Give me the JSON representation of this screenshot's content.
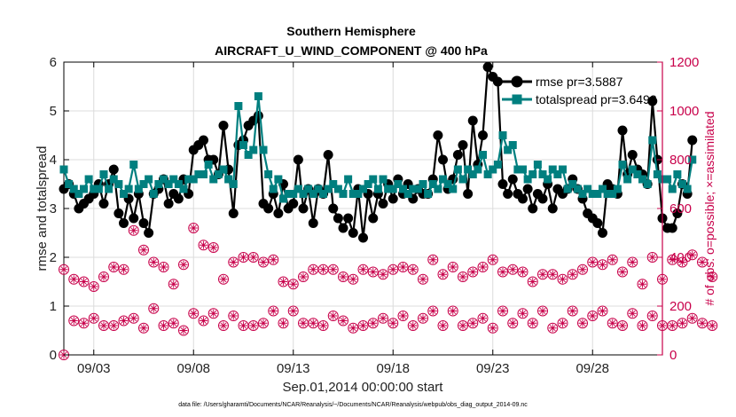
{
  "chart_data": {
    "type": "line",
    "title": "Southern Hemisphere",
    "subtitle": "AIRCRAFT_U_WIND_COMPONENT @ 400 hPa",
    "xlabel": "Sep.01,2014 00:00:00 start",
    "ylabel": "rmse and totalspread",
    "ylabel_right": "# of obs: o=possible; ×=assimilated",
    "footnote": "data file: /Users/gharamti/Documents/NCAR/Reanalysis/~/Documents/NCAR/Reanalysis/webpub/obs_diag_output_2014-09.nc",
    "x_tick_labels": [
      "09/03",
      "09/08",
      "09/13",
      "09/18",
      "09/23",
      "09/28"
    ],
    "x_tick_days": [
      3,
      8,
      13,
      18,
      23,
      28
    ],
    "x_range_days": [
      1.5,
      31.5
    ],
    "ylim": [
      0,
      6
    ],
    "yticks": [
      0,
      1,
      2,
      3,
      4,
      5,
      6
    ],
    "ylim_right": [
      0,
      1200
    ],
    "yticks_right": [
      0,
      200,
      400,
      600,
      800,
      1000,
      1200
    ],
    "grid": true,
    "legend_position": "top-right",
    "colors": {
      "rmse": "#000000",
      "totalspread": "#007f7f",
      "obs": "#c8004a"
    },
    "series": [
      {
        "name": "rmse pr=3.5887",
        "axis": "left",
        "x_start_day": 1.5,
        "x_step_day": 0.25,
        "values": [
          3.4,
          3.5,
          3.3,
          3.0,
          3.1,
          3.2,
          3.3,
          3.5,
          3.1,
          3.5,
          3.8,
          2.9,
          2.7,
          3.2,
          2.8,
          3.3,
          2.7,
          2.5,
          3.3,
          3.4,
          3.6,
          3.1,
          3.3,
          3.2,
          3.6,
          3.3,
          4.2,
          4.3,
          4.4,
          4.0,
          4.0,
          3.7,
          4.7,
          3.8,
          2.9,
          4.3,
          4.4,
          4.7,
          4.8,
          4.9,
          3.1,
          3.0,
          3.3,
          2.9,
          3.5,
          3.0,
          3.1,
          4.0,
          3.0,
          3.4,
          2.7,
          3.4,
          3.3,
          4.1,
          3.0,
          2.8,
          2.6,
          2.8,
          2.5,
          3.4,
          2.4,
          3.3,
          2.8,
          3.3,
          3.1,
          3.5,
          3.2,
          3.6,
          3.3,
          3.5,
          3.2,
          3.4,
          3.3,
          3.3,
          3.6,
          4.5,
          4.0,
          3.4,
          3.6,
          4.1,
          4.3,
          3.3,
          4.8,
          3.9,
          4.5,
          5.9,
          5.7,
          5.6,
          3.5,
          3.3,
          3.6,
          3.3,
          3.2,
          3.4,
          3.0,
          3.3,
          3.2,
          3.5,
          3.0,
          3.4,
          3.3,
          3.4,
          3.6,
          3.4,
          3.2,
          2.9,
          2.8,
          2.7,
          2.5,
          3.5,
          3.4,
          3.3,
          4.6,
          3.7,
          4.1,
          3.8,
          3.7,
          3.5,
          5.2,
          4.0,
          2.8,
          2.6,
          2.6,
          2.9,
          3.5,
          3.3,
          4.4
        ]
      },
      {
        "name": "totalspread pr=3.6493",
        "axis": "left",
        "x_start_day": 1.5,
        "x_step_day": 0.25,
        "values": [
          3.8,
          3.5,
          3.4,
          3.3,
          3.4,
          3.6,
          3.4,
          3.4,
          3.7,
          3.4,
          3.6,
          3.5,
          3.3,
          3.4,
          3.9,
          3.4,
          3.5,
          3.6,
          3.3,
          3.5,
          3.6,
          3.5,
          3.6,
          3.5,
          3.4,
          3.6,
          3.6,
          3.7,
          3.7,
          3.9,
          3.6,
          3.7,
          3.8,
          3.6,
          3.5,
          5.1,
          4.3,
          4.1,
          4.2,
          5.3,
          4.2,
          3.7,
          3.4,
          3.6,
          3.2,
          3.3,
          3.3,
          3.4,
          3.3,
          3.4,
          3.3,
          3.4,
          3.3,
          3.4,
          3.5,
          3.4,
          3.3,
          3.6,
          3.3,
          3.3,
          3.4,
          3.5,
          3.6,
          3.4,
          3.6,
          3.4,
          3.4,
          3.5,
          3.4,
          3.3,
          3.4,
          3.4,
          3.5,
          3.3,
          3.5,
          3.4,
          3.6,
          3.5,
          3.4,
          3.8,
          3.6,
          3.8,
          3.7,
          3.8,
          4.1,
          3.7,
          3.8,
          3.9,
          4.5,
          4.2,
          4.3,
          3.8,
          3.8,
          3.6,
          3.7,
          3.9,
          3.7,
          3.6,
          3.8,
          3.7,
          3.8,
          3.4,
          3.5,
          3.4,
          3.3,
          3.4,
          3.3,
          3.3,
          3.4,
          3.3,
          3.3,
          3.4,
          3.9,
          3.6,
          3.8,
          3.7,
          3.6,
          3.5,
          4.4,
          3.7,
          3.6,
          3.6,
          3.4,
          3.7,
          3.5,
          3.4,
          4.0
        ]
      },
      {
        "name": "",
        "kind": "obs-upper",
        "axis": "right",
        "x_start_day": 1.5,
        "x_step_day": 0.5,
        "values": [
          350,
          310,
          300,
          280,
          320,
          360,
          350,
          510,
          430,
          380,
          360,
          290,
          370,
          520,
          450,
          440,
          310,
          380,
          400,
          400,
          380,
          390,
          300,
          290,
          320,
          350,
          350,
          350,
          320,
          310,
          350,
          340,
          330,
          350,
          360,
          350,
          310,
          390,
          330,
          360,
          320,
          340,
          360,
          390,
          340,
          350,
          340,
          300,
          330,
          330,
          310,
          330,
          350,
          380,
          370,
          390,
          340,
          380,
          290,
          400,
          310,
          390,
          380,
          410,
          380,
          320
        ]
      },
      {
        "name": "",
        "kind": "obs-lower",
        "axis": "right",
        "x_start_day": 1.5,
        "x_step_day": 0.5,
        "values": [
          0,
          140,
          130,
          150,
          120,
          120,
          140,
          150,
          110,
          190,
          120,
          130,
          100,
          170,
          140,
          170,
          120,
          160,
          120,
          120,
          130,
          180,
          130,
          180,
          130,
          130,
          120,
          160,
          140,
          110,
          120,
          130,
          150,
          130,
          160,
          120,
          150,
          180,
          120,
          180,
          120,
          130,
          150,
          110,
          180,
          130,
          170,
          130,
          180,
          110,
          130,
          180,
          130,
          160,
          180,
          130,
          120,
          170,
          120,
          160,
          120,
          120,
          130,
          150,
          130,
          120
        ]
      }
    ]
  }
}
